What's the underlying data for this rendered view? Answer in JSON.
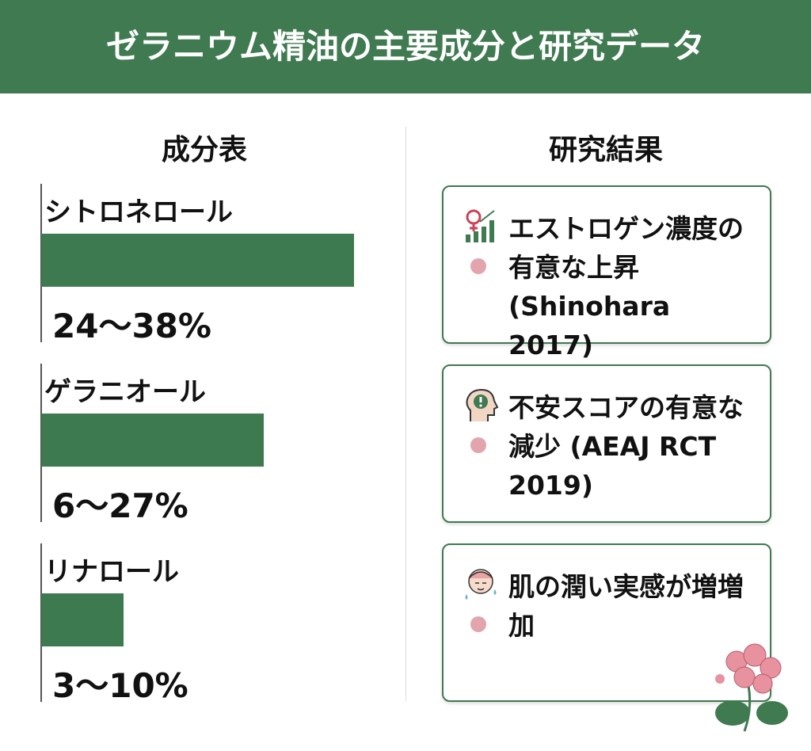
{
  "title": "ゼラニウム精油の主要成分と研究データ",
  "chart_data": {
    "type": "bar",
    "title": "成分表",
    "categories": [
      "シトロネロール",
      "ゲラニオール",
      "リナロール"
    ],
    "values": [
      [
        24,
        38
      ],
      [
        6,
        27
      ],
      [
        3,
        10
      ]
    ],
    "value_labels": [
      "24〜38%",
      "6〜27%",
      "3〜10%"
    ],
    "color": "#3e7a4f"
  },
  "research": {
    "heading": "研究結果",
    "items": [
      {
        "text": "エストロゲン濃度の有意な上昇 (Shinohara 2017)"
      },
      {
        "text": "不安スコアの有意な減少 (AEAJ RCT 2019)"
      },
      {
        "text": "肌の潤い実感が増増加"
      }
    ]
  }
}
